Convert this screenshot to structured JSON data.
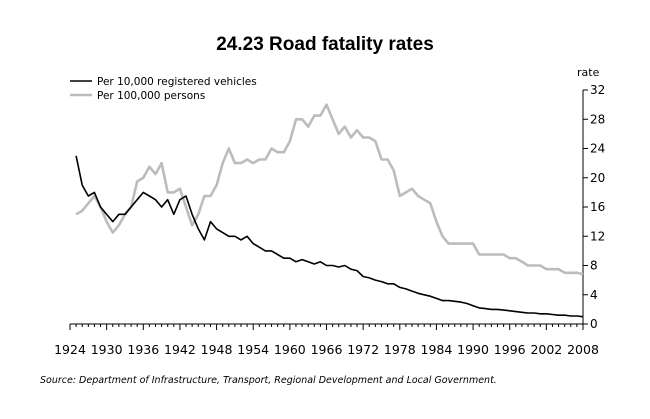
{
  "chart_data": {
    "type": "line",
    "title": "24.23 Road fatality rates",
    "ylabel": "rate",
    "xlabel": "",
    "xlim": [
      1924,
      2008
    ],
    "ylim": [
      0,
      32
    ],
    "xticks": [
      1924,
      1930,
      1936,
      1942,
      1948,
      1954,
      1960,
      1966,
      1972,
      1978,
      1984,
      1990,
      1996,
      2002,
      2008
    ],
    "yticks": [
      0,
      4,
      8,
      12,
      16,
      20,
      24,
      28,
      32
    ],
    "legend_position": "top-left",
    "source": "Source: Department of Infrastructure, Transport, Regional Development and Local Government.",
    "series": [
      {
        "name": "Per 10,000 registered vehicles",
        "color": "#000000",
        "x": [
          1925,
          1926,
          1927,
          1928,
          1929,
          1930,
          1931,
          1932,
          1933,
          1934,
          1935,
          1936,
          1937,
          1938,
          1939,
          1940,
          1941,
          1942,
          1943,
          1944,
          1945,
          1946,
          1947,
          1948,
          1949,
          1950,
          1951,
          1952,
          1953,
          1954,
          1955,
          1956,
          1957,
          1958,
          1959,
          1960,
          1961,
          1962,
          1963,
          1964,
          1965,
          1966,
          1967,
          1968,
          1969,
          1970,
          1971,
          1972,
          1973,
          1974,
          1975,
          1976,
          1977,
          1978,
          1979,
          1980,
          1981,
          1982,
          1983,
          1984,
          1985,
          1986,
          1987,
          1988,
          1989,
          1990,
          1991,
          1992,
          1993,
          1994,
          1995,
          1996,
          1997,
          1998,
          1999,
          2000,
          2001,
          2002,
          2003,
          2004,
          2005,
          2006,
          2007,
          2008
        ],
        "values": [
          23,
          19,
          17.5,
          18,
          16,
          15,
          14,
          15,
          15,
          16,
          17,
          18,
          17.5,
          17,
          16,
          17,
          15,
          17,
          17.5,
          15,
          13,
          11.5,
          14,
          13,
          12.5,
          12,
          12,
          11.5,
          12,
          11,
          10.5,
          10,
          10,
          9.5,
          9,
          9,
          8.5,
          8.8,
          8.5,
          8.2,
          8.5,
          8,
          8,
          7.8,
          8,
          7.5,
          7.3,
          6.5,
          6.3,
          6,
          5.8,
          5.5,
          5.5,
          5,
          4.8,
          4.5,
          4.2,
          4,
          3.8,
          3.5,
          3.2,
          3.2,
          3.1,
          3,
          2.8,
          2.5,
          2.2,
          2.1,
          2,
          2,
          1.9,
          1.8,
          1.7,
          1.6,
          1.5,
          1.5,
          1.4,
          1.4,
          1.3,
          1.2,
          1.2,
          1.1,
          1.1,
          1
        ]
      },
      {
        "name": "Per 100,000 persons",
        "color": "#bcbcbc",
        "x": [
          1925,
          1926,
          1927,
          1928,
          1929,
          1930,
          1931,
          1932,
          1933,
          1934,
          1935,
          1936,
          1937,
          1938,
          1939,
          1940,
          1941,
          1942,
          1943,
          1944,
          1945,
          1946,
          1947,
          1948,
          1949,
          1950,
          1951,
          1952,
          1953,
          1954,
          1955,
          1956,
          1957,
          1958,
          1959,
          1960,
          1961,
          1962,
          1963,
          1964,
          1965,
          1966,
          1967,
          1968,
          1969,
          1970,
          1971,
          1972,
          1973,
          1974,
          1975,
          1976,
          1977,
          1978,
          1979,
          1980,
          1981,
          1982,
          1983,
          1984,
          1985,
          1986,
          1987,
          1988,
          1989,
          1990,
          1991,
          1992,
          1993,
          1994,
          1995,
          1996,
          1997,
          1998,
          1999,
          2000,
          2001,
          2002,
          2003,
          2004,
          2005,
          2006,
          2007,
          2008
        ],
        "values": [
          15,
          15.5,
          16.5,
          17.5,
          16,
          14,
          12.5,
          13.5,
          15,
          16,
          19.5,
          20,
          21.5,
          20.5,
          22,
          18,
          18,
          18.5,
          16,
          13.5,
          15,
          17.5,
          17.5,
          19,
          22,
          24,
          22,
          22,
          22.5,
          22,
          22.5,
          22.5,
          24,
          23.5,
          23.5,
          25,
          28,
          28,
          27,
          28.5,
          28.5,
          30,
          28,
          26,
          27,
          25.5,
          26.5,
          25.5,
          25.5,
          25,
          22.5,
          22.5,
          21,
          17.5,
          18,
          18.5,
          17.5,
          17,
          16.5,
          14,
          12,
          11,
          11,
          11,
          11,
          11,
          9.5,
          9.5,
          9.5,
          9.5,
          9.5,
          9,
          9,
          8.5,
          8,
          8,
          8,
          7.5,
          7.5,
          7.5,
          7,
          7,
          7,
          6.8
        ]
      }
    ]
  }
}
